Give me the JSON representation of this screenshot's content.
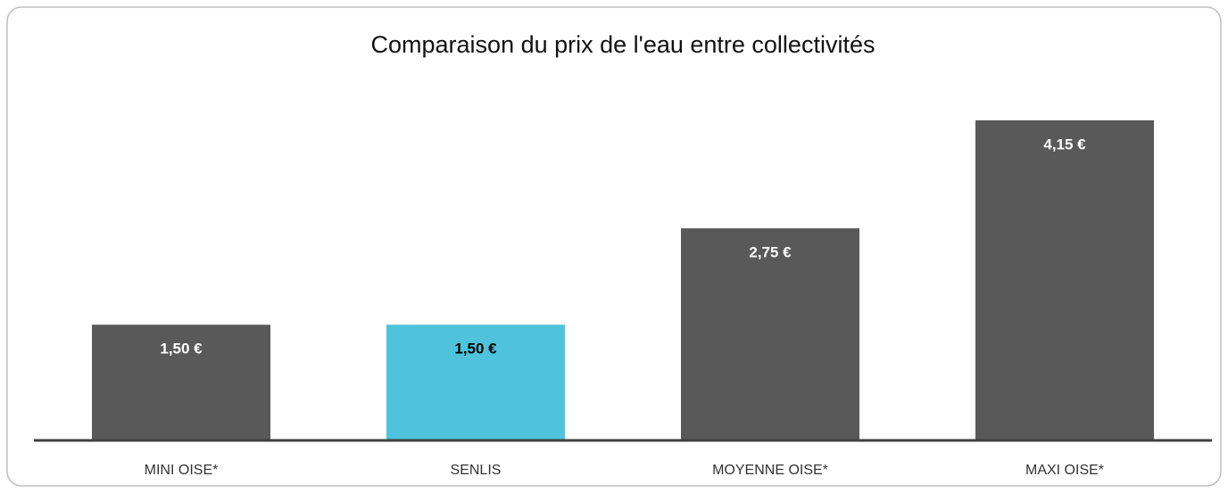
{
  "chart_data": {
    "type": "bar",
    "title": "Comparaison du prix de l'eau entre collectivités",
    "categories": [
      "MINI OISE*",
      "SENLIS",
      "MOYENNE OISE*",
      "MAXI OISE*"
    ],
    "values": [
      1.5,
      1.5,
      2.75,
      4.15
    ],
    "value_labels": [
      "1,50 €",
      "1,50 €",
      "2,75 €",
      "4,15 €"
    ],
    "colors": [
      "#595959",
      "#4fc3db",
      "#595959",
      "#595959"
    ]
  }
}
